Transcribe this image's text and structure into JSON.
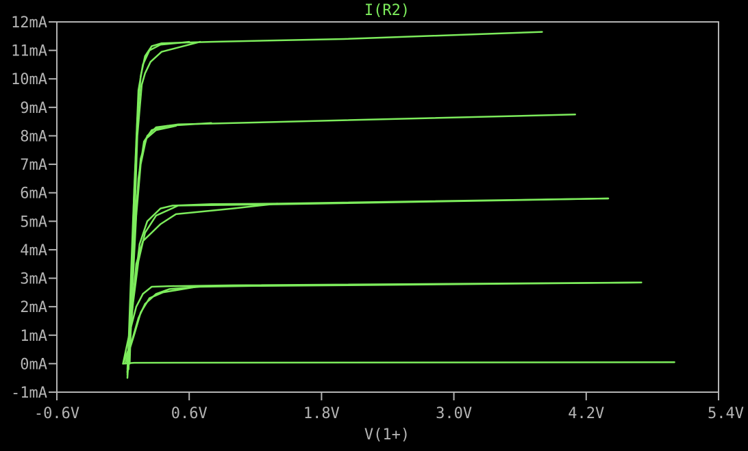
{
  "colors": {
    "background": "#000000",
    "frame": "#b4b4b4",
    "text": "#b4b4b4",
    "trace": "#7dec5c"
  },
  "chart_data": {
    "type": "line",
    "title": "I(R2)",
    "xlabel": "V(1+)",
    "ylabel": "",
    "xlim": [
      -0.6,
      5.4
    ],
    "ylim": [
      -1,
      12
    ],
    "xticks": [
      -0.6,
      0.6,
      1.8,
      3.0,
      4.2,
      5.4
    ],
    "xtick_labels": [
      "-0.6V",
      "0.6V",
      "1.8V",
      "3.0V",
      "4.2V",
      "5.4V"
    ],
    "yticks": [
      -1,
      0,
      1,
      2,
      3,
      4,
      5,
      6,
      7,
      8,
      9,
      10,
      11,
      12
    ],
    "ytick_labels": [
      "-1mA",
      "0mA",
      "1mA",
      "2mA",
      "3mA",
      "4mA",
      "5mA",
      "6mA",
      "7mA",
      "8mA",
      "9mA",
      "10mA",
      "11mA",
      "12mA"
    ],
    "grid": false,
    "series": [
      {
        "x": [
          0.0,
          0.1,
          5.0
        ],
        "y": [
          0.0,
          0.03,
          0.05
        ]
      },
      {
        "x": [
          0.0,
          0.08,
          0.14,
          0.2,
          0.3,
          0.42,
          0.7,
          1.2,
          2.5,
          4.7
        ],
        "y": [
          0.0,
          0.8,
          1.6,
          2.1,
          2.45,
          2.62,
          2.7,
          2.73,
          2.77,
          2.85
        ]
      },
      {
        "x": [
          0.0,
          0.06,
          0.12,
          0.18,
          0.26,
          0.4,
          1.0,
          4.7
        ],
        "y": [
          0.0,
          1.1,
          2.0,
          2.45,
          2.7,
          2.72,
          2.75,
          2.85
        ]
      },
      {
        "x": [
          0.02,
          0.1,
          0.16,
          0.24,
          0.36,
          0.7
        ],
        "y": [
          0.0,
          1.0,
          1.8,
          2.3,
          2.5,
          2.72
        ]
      },
      {
        "x": [
          0.04,
          0.08,
          0.14,
          0.2,
          0.3,
          0.5,
          1.5,
          4.4
        ],
        "y": [
          -0.5,
          1.8,
          3.6,
          4.6,
          5.2,
          5.55,
          5.6,
          5.8
        ]
      },
      {
        "x": [
          0.04,
          0.1,
          0.15,
          0.22,
          0.34,
          0.45,
          0.8,
          1.4,
          4.4
        ],
        "y": [
          -0.3,
          2.6,
          4.2,
          5.0,
          5.45,
          5.55,
          5.6,
          5.62,
          5.8
        ]
      },
      {
        "x": [
          0.04,
          0.12,
          0.18,
          0.34,
          0.48,
          1.0,
          1.4
        ],
        "y": [
          0.0,
          3.5,
          4.3,
          4.9,
          5.25,
          5.45,
          5.62
        ]
      },
      {
        "x": [
          0.04,
          0.08,
          0.12,
          0.16,
          0.22,
          0.3,
          0.5,
          1.5,
          4.1
        ],
        "y": [
          -0.3,
          2.6,
          5.5,
          7.2,
          8.0,
          8.3,
          8.4,
          8.5,
          8.75
        ]
      },
      {
        "x": [
          0.04,
          0.1,
          0.14,
          0.19,
          0.26,
          0.4,
          0.8
        ],
        "y": [
          -0.2,
          4.0,
          6.5,
          7.8,
          8.2,
          8.35,
          8.45
        ]
      },
      {
        "x": [
          0.05,
          0.12,
          0.16,
          0.21,
          0.3,
          0.48
        ],
        "y": [
          0.0,
          5.2,
          7.0,
          7.9,
          8.2,
          8.35
        ]
      },
      {
        "x": [
          0.04,
          0.09,
          0.13,
          0.16,
          0.2,
          0.26,
          0.35,
          0.8,
          2.0,
          3.8
        ],
        "y": [
          -0.4,
          5.0,
          8.6,
          10.1,
          10.8,
          11.15,
          11.25,
          11.3,
          11.4,
          11.65
        ]
      },
      {
        "x": [
          0.05,
          0.1,
          0.14,
          0.18,
          0.24,
          0.34,
          0.6
        ],
        "y": [
          -0.2,
          6.0,
          9.6,
          10.5,
          11.0,
          11.2,
          11.3
        ]
      },
      {
        "x": [
          0.06,
          0.13,
          0.17,
          0.2,
          0.25,
          0.35,
          0.7
        ],
        "y": [
          0.0,
          8.0,
          9.8,
          10.2,
          10.6,
          10.95,
          11.3
        ]
      }
    ]
  }
}
